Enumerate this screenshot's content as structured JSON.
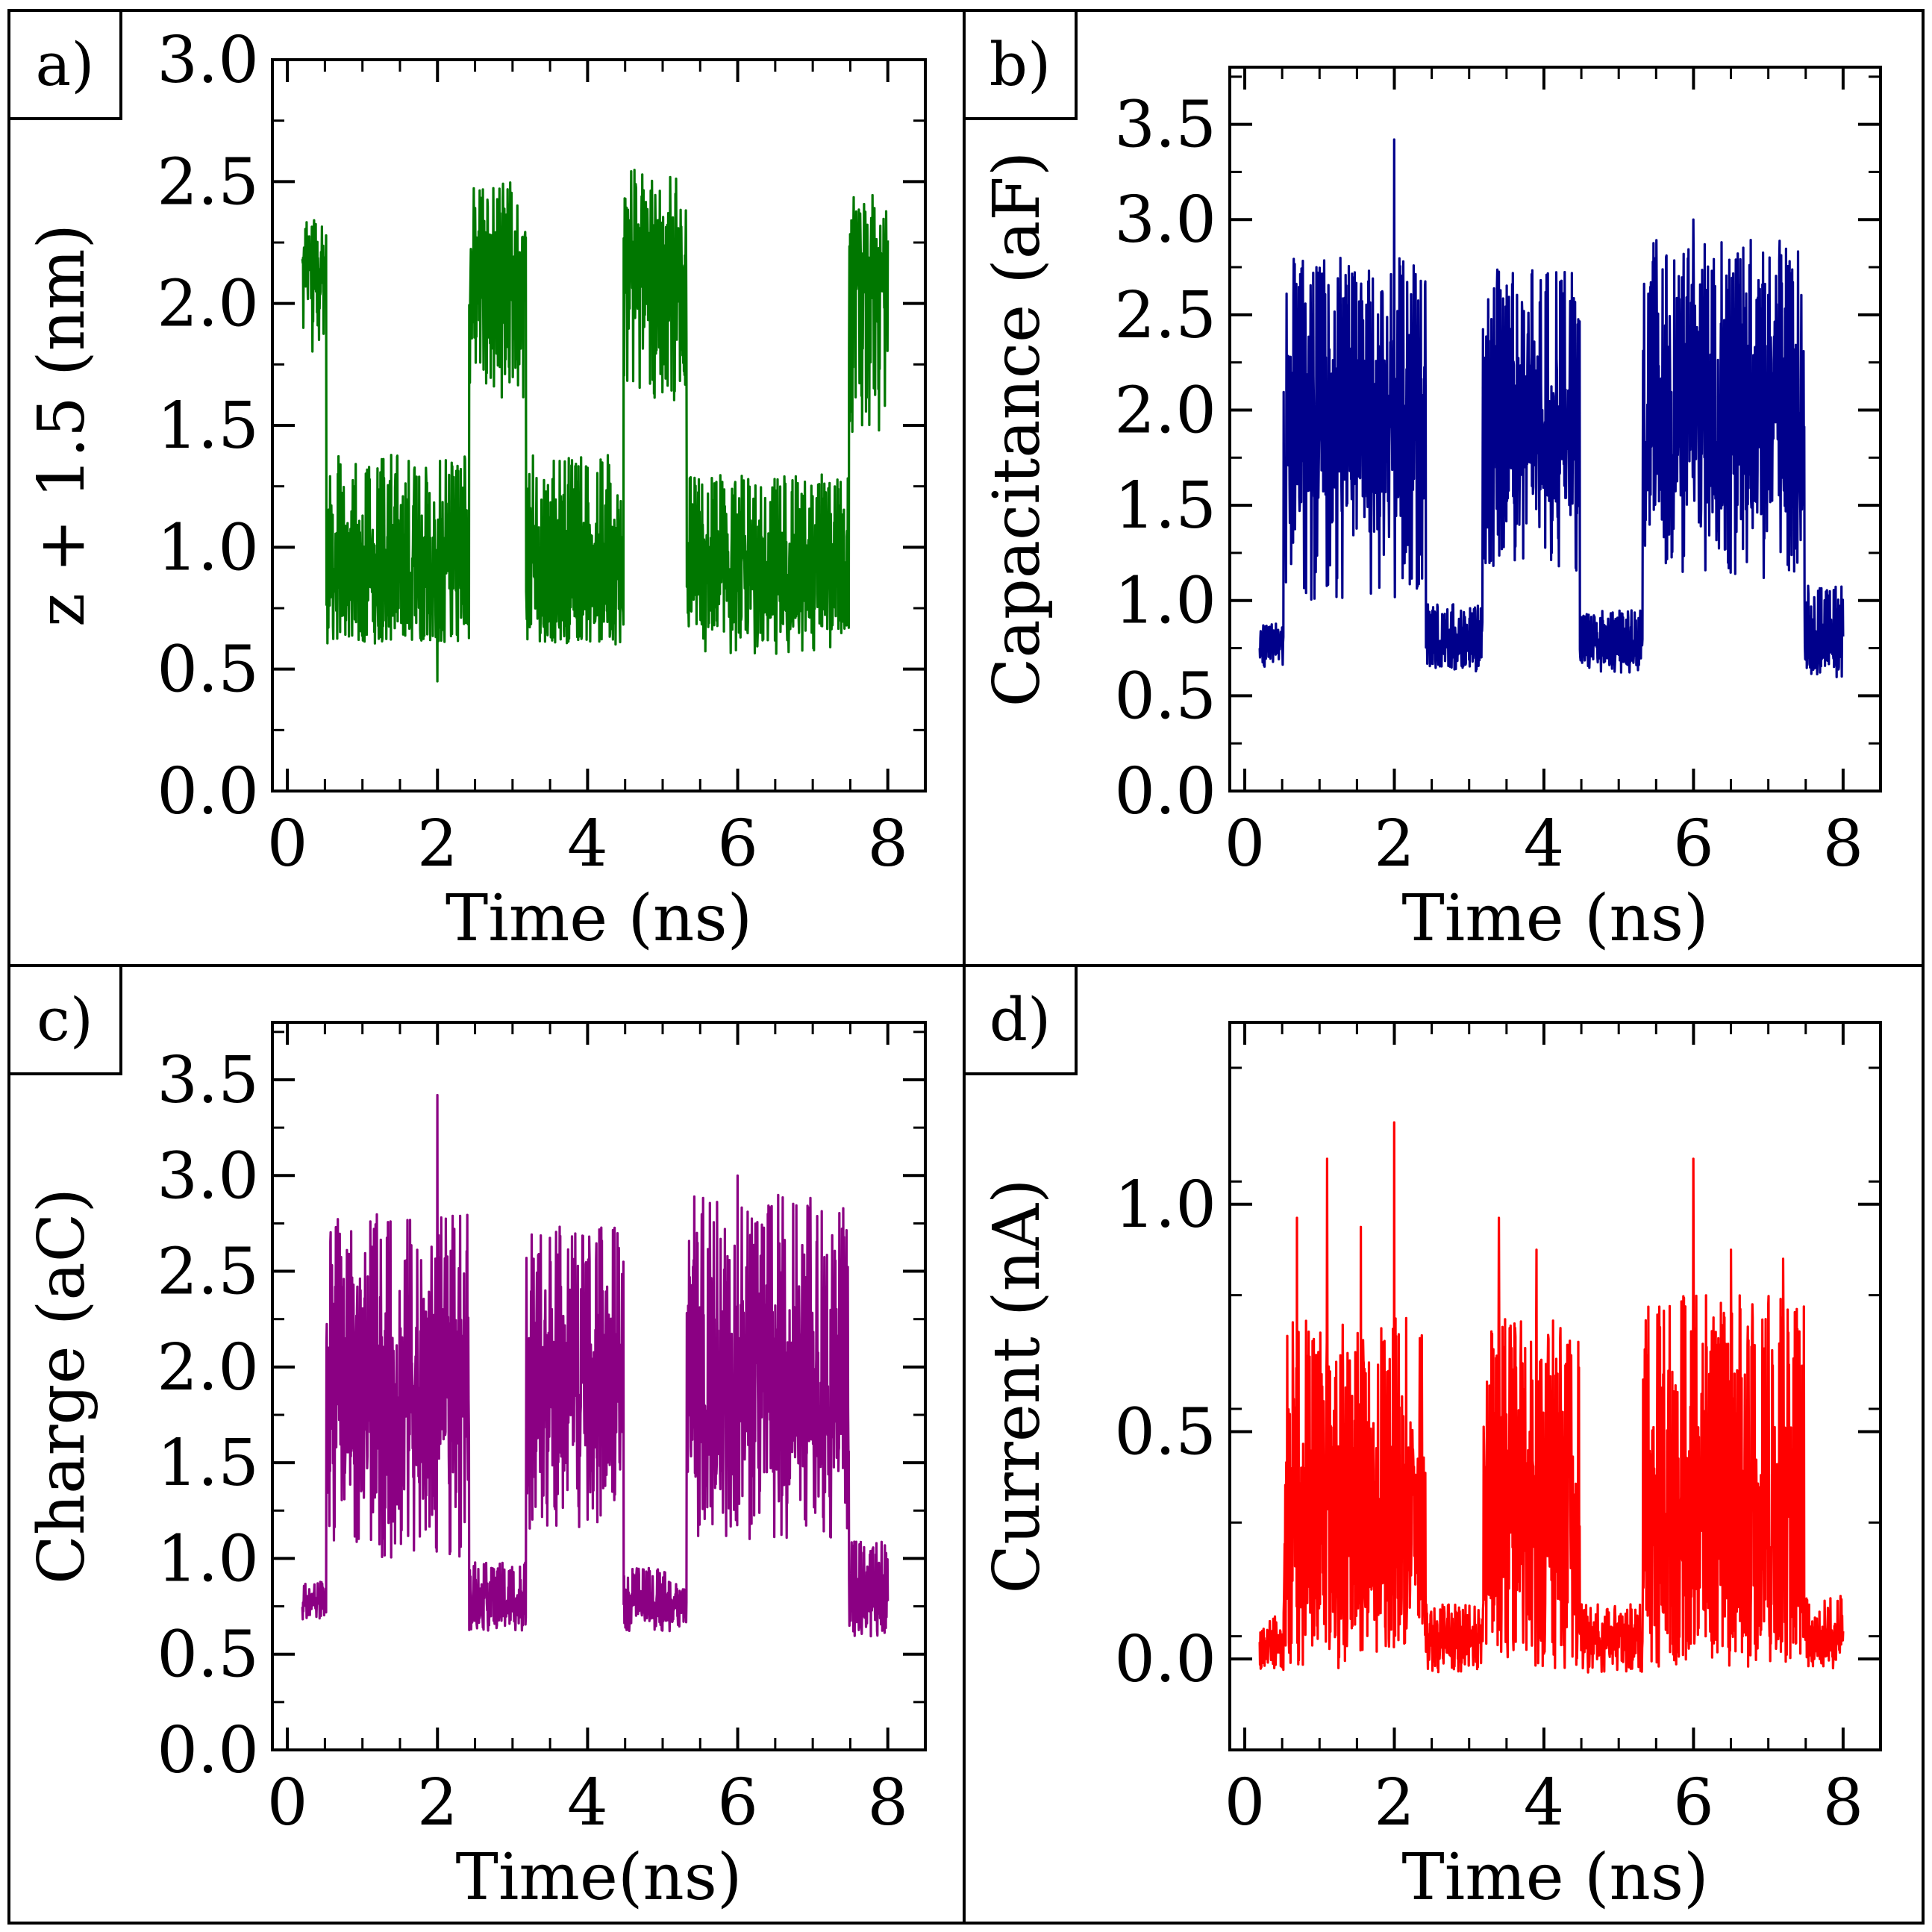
{
  "figure": {
    "panels": [
      "a",
      "b",
      "c",
      "d"
    ]
  },
  "chart_data": [
    {
      "id": "a",
      "panel_label": "a)",
      "type": "line",
      "series_name": "z + 1.5",
      "color": "#007700",
      "xlabel": "Time (ns)",
      "ylabel": "z + 1.5 (nm)",
      "xlim": [
        -0.2,
        8.5
      ],
      "ylim": [
        0.0,
        3.0
      ],
      "xticks": [
        0,
        2,
        4,
        6,
        8
      ],
      "xtick_labels": [
        "0",
        "2",
        "4",
        "6",
        "8"
      ],
      "yticks": [
        0.0,
        0.5,
        1.0,
        1.5,
        2.0,
        2.5,
        3.0
      ],
      "ytick_labels": [
        "0.0",
        "0.5",
        "1.0",
        "1.5",
        "2.0",
        "2.5",
        "3.0"
      ],
      "x_start": 0.2,
      "x_end": 8.0,
      "segments": [
        {
          "from": 0.2,
          "to": 0.52,
          "level": 2.15,
          "low": 1.8,
          "high": 2.38
        },
        {
          "from": 0.52,
          "to": 2.42,
          "level": 0.85,
          "low": 0.6,
          "high": 1.38
        },
        {
          "from": 2.42,
          "to": 3.18,
          "level": 2.15,
          "low": 1.6,
          "high": 2.5
        },
        {
          "from": 3.18,
          "to": 4.48,
          "level": 0.85,
          "low": 0.6,
          "high": 1.38
        },
        {
          "from": 4.48,
          "to": 5.32,
          "level": 2.15,
          "low": 1.6,
          "high": 2.55
        },
        {
          "from": 5.32,
          "to": 7.48,
          "level": 0.85,
          "low": 0.55,
          "high": 1.3
        },
        {
          "from": 7.48,
          "to": 8.0,
          "level": 2.15,
          "low": 1.45,
          "high": 2.45
        }
      ],
      "spikes": [
        {
          "x": 2.0,
          "y": 0.45
        }
      ]
    },
    {
      "id": "b",
      "panel_label": "b)",
      "type": "line",
      "series_name": "Capacitance",
      "color": "#00008b",
      "xlabel": "Time (ns)",
      "ylabel": "Capacitance (aF)",
      "xlim": [
        -0.2,
        8.5
      ],
      "ylim": [
        0.0,
        3.8
      ],
      "xticks": [
        0,
        2,
        4,
        6,
        8
      ],
      "xtick_labels": [
        "0",
        "2",
        "4",
        "6",
        "8"
      ],
      "yticks": [
        0.0,
        0.5,
        1.0,
        1.5,
        2.0,
        2.5,
        3.0,
        3.5
      ],
      "ytick_labels": [
        "0.0",
        "0.5",
        "1.0",
        "1.5",
        "2.0",
        "2.5",
        "3.0",
        "3.5"
      ],
      "x_start": 0.2,
      "x_end": 8.0,
      "segments": [
        {
          "from": 0.2,
          "to": 0.52,
          "level": 0.78,
          "low": 0.65,
          "high": 0.88
        },
        {
          "from": 0.52,
          "to": 2.42,
          "level": 1.9,
          "low": 1.0,
          "high": 2.8
        },
        {
          "from": 2.42,
          "to": 3.18,
          "level": 0.75,
          "low": 0.62,
          "high": 0.98
        },
        {
          "from": 3.18,
          "to": 4.48,
          "level": 1.9,
          "low": 1.15,
          "high": 2.75
        },
        {
          "from": 4.48,
          "to": 5.32,
          "level": 0.75,
          "low": 0.62,
          "high": 0.95
        },
        {
          "from": 5.32,
          "to": 7.48,
          "level": 1.9,
          "low": 1.1,
          "high": 2.9
        },
        {
          "from": 7.48,
          "to": 8.0,
          "level": 0.75,
          "low": 0.62,
          "high": 1.1
        }
      ],
      "spikes": [
        {
          "x": 2.0,
          "y": 3.42
        },
        {
          "x": 6.0,
          "y": 3.0
        }
      ]
    },
    {
      "id": "c",
      "panel_label": "c)",
      "type": "line",
      "series_name": "Charge",
      "color": "#8b0083",
      "xlabel": "Time(ns)",
      "ylabel": "Charge (aC)",
      "xlim": [
        -0.2,
        8.5
      ],
      "ylim": [
        0.0,
        3.8
      ],
      "xticks": [
        0,
        2,
        4,
        6,
        8
      ],
      "xtick_labels": [
        "0",
        "2",
        "4",
        "6",
        "8"
      ],
      "yticks": [
        0.0,
        0.5,
        1.0,
        1.5,
        2.0,
        2.5,
        3.0,
        3.5
      ],
      "ytick_labels": [
        "0.0",
        "0.5",
        "1.0",
        "1.5",
        "2.0",
        "2.5",
        "3.0",
        "3.5"
      ],
      "x_start": 0.2,
      "x_end": 8.0,
      "segments": [
        {
          "from": 0.2,
          "to": 0.52,
          "level": 0.78,
          "low": 0.65,
          "high": 0.88
        },
        {
          "from": 0.52,
          "to": 2.42,
          "level": 1.9,
          "low": 1.0,
          "high": 2.8
        },
        {
          "from": 2.42,
          "to": 3.18,
          "level": 0.75,
          "low": 0.62,
          "high": 0.98
        },
        {
          "from": 3.18,
          "to": 4.48,
          "level": 1.9,
          "low": 1.15,
          "high": 2.75
        },
        {
          "from": 4.48,
          "to": 5.32,
          "level": 0.75,
          "low": 0.62,
          "high": 0.95
        },
        {
          "from": 5.32,
          "to": 7.48,
          "level": 1.9,
          "low": 1.1,
          "high": 2.9
        },
        {
          "from": 7.48,
          "to": 8.0,
          "level": 0.75,
          "low": 0.62,
          "high": 1.1
        }
      ],
      "spikes": [
        {
          "x": 2.0,
          "y": 3.42
        },
        {
          "x": 6.0,
          "y": 3.0
        }
      ]
    },
    {
      "id": "d",
      "panel_label": "d)",
      "type": "line",
      "series_name": "Current",
      "color": "#ff0000",
      "xlabel": "Time (ns)",
      "ylabel": "Current (nA)",
      "xlim": [
        -0.2,
        8.5
      ],
      "ylim": [
        -0.2,
        1.4
      ],
      "xticks": [
        0,
        2,
        4,
        6,
        8
      ],
      "xtick_labels": [
        "0",
        "2",
        "4",
        "6",
        "8"
      ],
      "yticks": [
        0.0,
        0.5,
        1.0
      ],
      "ytick_labels": [
        "0.0",
        "0.5",
        "1.0"
      ],
      "x_start": 0.2,
      "x_end": 8.0,
      "segments": [
        {
          "from": 0.2,
          "to": 0.52,
          "level": 0.04,
          "low": -0.03,
          "high": 0.1
        },
        {
          "from": 0.52,
          "to": 2.42,
          "level": 0.25,
          "low": -0.02,
          "high": 0.75
        },
        {
          "from": 2.42,
          "to": 3.18,
          "level": 0.04,
          "low": -0.03,
          "high": 0.12
        },
        {
          "from": 3.18,
          "to": 4.48,
          "level": 0.25,
          "low": -0.02,
          "high": 0.75
        },
        {
          "from": 4.48,
          "to": 5.32,
          "level": 0.04,
          "low": -0.03,
          "high": 0.12
        },
        {
          "from": 5.32,
          "to": 7.48,
          "level": 0.25,
          "low": -0.02,
          "high": 0.8
        },
        {
          "from": 7.48,
          "to": 8.0,
          "level": 0.04,
          "low": -0.03,
          "high": 0.14
        }
      ],
      "spikes": [
        {
          "x": 0.7,
          "y": 0.97
        },
        {
          "x": 1.1,
          "y": 1.1
        },
        {
          "x": 1.55,
          "y": 0.95
        },
        {
          "x": 2.0,
          "y": 1.18
        },
        {
          "x": 3.4,
          "y": 0.97
        },
        {
          "x": 3.9,
          "y": 0.9
        },
        {
          "x": 6.0,
          "y": 1.1
        },
        {
          "x": 6.5,
          "y": 0.9
        },
        {
          "x": 7.2,
          "y": 0.88
        }
      ]
    }
  ]
}
